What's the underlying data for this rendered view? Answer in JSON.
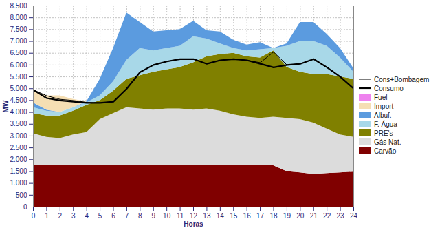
{
  "chart_data": {
    "type": "area",
    "stacked": true,
    "grid": true,
    "legend": "right",
    "x_label": "Horas",
    "y_label": "MW",
    "x": [
      0,
      1,
      2,
      3,
      4,
      5,
      6,
      7,
      8,
      9,
      10,
      11,
      12,
      13,
      14,
      15,
      16,
      17,
      18,
      19,
      20,
      21,
      22,
      23,
      24
    ],
    "xlim": [
      0,
      24
    ],
    "xticks": [
      0,
      1,
      2,
      3,
      4,
      5,
      6,
      7,
      8,
      9,
      10,
      11,
      12,
      13,
      14,
      15,
      16,
      17,
      18,
      19,
      20,
      21,
      22,
      23,
      24
    ],
    "ylim": [
      0,
      8500
    ],
    "yticks": [
      0,
      500,
      {
        "value": 1000,
        "label": "1.000"
      },
      {
        "value": 1500,
        "label": "1.500"
      },
      {
        "value": 2000,
        "label": "2.000"
      },
      {
        "value": 2500,
        "label": "2.500"
      },
      {
        "value": 3000,
        "label": "3.000"
      },
      {
        "value": 3500,
        "label": "3.500"
      },
      {
        "value": 4000,
        "label": "4.000"
      },
      {
        "value": 4500,
        "label": "4.500"
      },
      {
        "value": 5000,
        "label": "5.000"
      },
      {
        "value": 5500,
        "label": "5.500"
      },
      {
        "value": 6000,
        "label": "6.000"
      },
      {
        "value": 6500,
        "label": "6.500"
      },
      {
        "value": 7000,
        "label": "7.000"
      },
      {
        "value": 7500,
        "label": "7.500"
      },
      {
        "value": 8000,
        "label": "8.000"
      },
      {
        "value": 8500,
        "label": "8.500"
      }
    ],
    "series": [
      {
        "name": "Carvão",
        "color": "#800000",
        "values": [
          1750,
          1750,
          1750,
          1750,
          1750,
          1750,
          1750,
          1750,
          1750,
          1750,
          1750,
          1750,
          1750,
          1750,
          1750,
          1750,
          1750,
          1750,
          1750,
          1500,
          1450,
          1380,
          1420,
          1450,
          1480
        ]
      },
      {
        "name": "Gás Nat.",
        "color": "#dcdcdc",
        "values": [
          1350,
          1200,
          1150,
          1300,
          1400,
          1950,
          2200,
          2450,
          2400,
          2350,
          2400,
          2400,
          2350,
          2400,
          2300,
          2150,
          2050,
          2000,
          2050,
          2250,
          2250,
          2170,
          1880,
          1600,
          1470
        ]
      },
      {
        "name": "PRE's",
        "color": "#808000",
        "values": [
          850,
          900,
          950,
          1000,
          1150,
          800,
          950,
          1200,
          1400,
          1600,
          1650,
          1750,
          2000,
          2200,
          2400,
          2600,
          2550,
          2550,
          2800,
          2150,
          2000,
          2050,
          2300,
          2450,
          2450
        ]
      },
      {
        "name": "F. Água",
        "color": "#a8d8e8",
        "values": [
          250,
          200,
          150,
          150,
          100,
          200,
          400,
          800,
          1150,
          900,
          900,
          900,
          1100,
          750,
          450,
          200,
          250,
          350,
          100,
          900,
          1300,
          1400,
          1200,
          800,
          300
        ]
      },
      {
        "name": "Albuf.",
        "color": "#5b9bdf",
        "values": [
          200,
          50,
          0,
          0,
          50,
          700,
          1400,
          2000,
          1100,
          800,
          750,
          700,
          650,
          350,
          500,
          350,
          250,
          300,
          0,
          100,
          800,
          800,
          500,
          400,
          150
        ]
      },
      {
        "name": "Import",
        "color": "#f5deb3",
        "values": [
          500,
          600,
          700,
          350,
          0,
          0,
          0,
          0,
          0,
          0,
          0,
          0,
          0,
          0,
          0,
          0,
          0,
          0,
          0,
          0,
          0,
          0,
          0,
          0,
          0
        ]
      },
      {
        "name": "Fuel",
        "color": "#ee82ee",
        "values": [
          0,
          0,
          0,
          0,
          0,
          0,
          0,
          0,
          0,
          0,
          0,
          0,
          0,
          0,
          0,
          0,
          0,
          0,
          0,
          0,
          0,
          0,
          0,
          0,
          0
        ]
      },
      {
        "name": "Cons+Bombagem",
        "type": "line",
        "color": "#000000",
        "values": [
          4950,
          4700,
          4550,
          4500,
          4420,
          4400,
          4450,
          5000,
          5700,
          6000,
          6150,
          6250,
          6250,
          6050,
          6200,
          6250,
          6200,
          6100,
          6550,
          6000,
          6050,
          6250,
          5900,
          5500,
          5000
        ]
      },
      {
        "name": "Consumo",
        "type": "line",
        "color": "#000000",
        "values": [
          4950,
          4600,
          4500,
          4450,
          4400,
          4400,
          4450,
          5000,
          5700,
          6000,
          6150,
          6250,
          6250,
          6050,
          6200,
          6250,
          6200,
          6050,
          5900,
          6000,
          6050,
          6250,
          5900,
          5500,
          5000
        ]
      }
    ]
  }
}
